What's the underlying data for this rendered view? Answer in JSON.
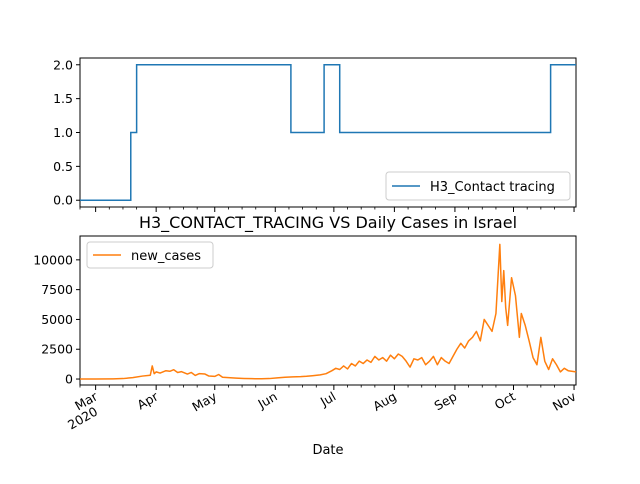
{
  "chart_data": [
    {
      "type": "line",
      "title": "",
      "xlabel": "",
      "ylabel": "",
      "x_axis": "date",
      "xlim": [
        "2020-02-22",
        "2020-11-02"
      ],
      "ylim": [
        -0.1,
        2.1
      ],
      "yticks": [
        "0.0",
        "0.5",
        "1.0",
        "1.5",
        "2.0"
      ],
      "legend": "lower-right",
      "grid": false,
      "series": [
        {
          "name": "H3_Contact tracing",
          "color": "#1f77b4",
          "steps": [
            {
              "from": "2020-02-22",
              "to": "2020-03-19",
              "value": 0
            },
            {
              "from": "2020-03-19",
              "to": "2020-03-22",
              "value": 1
            },
            {
              "from": "2020-03-22",
              "to": "2020-06-09",
              "value": 2
            },
            {
              "from": "2020-06-09",
              "to": "2020-06-26",
              "value": 1
            },
            {
              "from": "2020-06-26",
              "to": "2020-07-04",
              "value": 2
            },
            {
              "from": "2020-07-04",
              "to": "2020-10-20",
              "value": 1
            },
            {
              "from": "2020-10-20",
              "to": "2020-11-02",
              "value": 2
            }
          ]
        }
      ]
    },
    {
      "type": "line",
      "title": "H3_CONTACT_TRACING VS Daily Cases in Israel",
      "xlabel": "Date",
      "ylabel": "",
      "x_axis": "date",
      "xlim": [
        "2020-02-22",
        "2020-11-02"
      ],
      "ylim": [
        -500,
        12000
      ],
      "yticks": [
        "0",
        "2500",
        "5000",
        "7500",
        "10000"
      ],
      "xticks": [
        {
          "date": "2020-03-01",
          "label": "Mar",
          "sublabel": "2020"
        },
        {
          "date": "2020-04-01",
          "label": "Apr"
        },
        {
          "date": "2020-05-01",
          "label": "May"
        },
        {
          "date": "2020-06-01",
          "label": "Jun"
        },
        {
          "date": "2020-07-01",
          "label": "Jul"
        },
        {
          "date": "2020-08-01",
          "label": "Aug"
        },
        {
          "date": "2020-09-01",
          "label": "Sep"
        },
        {
          "date": "2020-10-01",
          "label": "Oct"
        },
        {
          "date": "2020-11-01",
          "label": "Nov"
        }
      ],
      "legend": "upper-left",
      "grid": false,
      "series": [
        {
          "name": "new_cases",
          "color": "#ff7f0e",
          "points": [
            [
              "2020-02-22",
              0
            ],
            [
              "2020-03-01",
              2
            ],
            [
              "2020-03-10",
              15
            ],
            [
              "2020-03-15",
              40
            ],
            [
              "2020-03-20",
              120
            ],
            [
              "2020-03-25",
              250
            ],
            [
              "2020-03-29",
              320
            ],
            [
              "2020-03-30",
              1100
            ],
            [
              "2020-03-31",
              450
            ],
            [
              "2020-04-01",
              600
            ],
            [
              "2020-04-03",
              500
            ],
            [
              "2020-04-06",
              700
            ],
            [
              "2020-04-08",
              650
            ],
            [
              "2020-04-10",
              780
            ],
            [
              "2020-04-12",
              550
            ],
            [
              "2020-04-14",
              620
            ],
            [
              "2020-04-17",
              420
            ],
            [
              "2020-04-19",
              550
            ],
            [
              "2020-04-21",
              300
            ],
            [
              "2020-04-23",
              450
            ],
            [
              "2020-04-26",
              420
            ],
            [
              "2020-04-28",
              250
            ],
            [
              "2020-05-01",
              220
            ],
            [
              "2020-05-03",
              380
            ],
            [
              "2020-05-05",
              150
            ],
            [
              "2020-05-08",
              120
            ],
            [
              "2020-05-12",
              80
            ],
            [
              "2020-05-16",
              50
            ],
            [
              "2020-05-20",
              30
            ],
            [
              "2020-05-25",
              20
            ],
            [
              "2020-05-29",
              40
            ],
            [
              "2020-06-02",
              100
            ],
            [
              "2020-06-06",
              150
            ],
            [
              "2020-06-10",
              180
            ],
            [
              "2020-06-14",
              200
            ],
            [
              "2020-06-17",
              230
            ],
            [
              "2020-06-20",
              280
            ],
            [
              "2020-06-24",
              350
            ],
            [
              "2020-06-27",
              450
            ],
            [
              "2020-06-30",
              700
            ],
            [
              "2020-07-02",
              900
            ],
            [
              "2020-07-04",
              800
            ],
            [
              "2020-07-06",
              1100
            ],
            [
              "2020-07-08",
              850
            ],
            [
              "2020-07-10",
              1300
            ],
            [
              "2020-07-12",
              1100
            ],
            [
              "2020-07-14",
              1500
            ],
            [
              "2020-07-16",
              1300
            ],
            [
              "2020-07-18",
              1600
            ],
            [
              "2020-07-20",
              1400
            ],
            [
              "2020-07-22",
              1900
            ],
            [
              "2020-07-24",
              1600
            ],
            [
              "2020-07-26",
              1800
            ],
            [
              "2020-07-28",
              1500
            ],
            [
              "2020-07-30",
              2000
            ],
            [
              "2020-08-01",
              1700
            ],
            [
              "2020-08-03",
              2100
            ],
            [
              "2020-08-05",
              1900
            ],
            [
              "2020-08-07",
              1500
            ],
            [
              "2020-08-09",
              1000
            ],
            [
              "2020-08-11",
              1700
            ],
            [
              "2020-08-13",
              1600
            ],
            [
              "2020-08-15",
              1800
            ],
            [
              "2020-08-17",
              1200
            ],
            [
              "2020-08-19",
              1500
            ],
            [
              "2020-08-21",
              1900
            ],
            [
              "2020-08-23",
              1200
            ],
            [
              "2020-08-25",
              1800
            ],
            [
              "2020-08-27",
              1500
            ],
            [
              "2020-08-29",
              1300
            ],
            [
              "2020-08-31",
              1900
            ],
            [
              "2020-09-02",
              2500
            ],
            [
              "2020-09-04",
              3000
            ],
            [
              "2020-09-06",
              2600
            ],
            [
              "2020-09-08",
              3200
            ],
            [
              "2020-09-10",
              3500
            ],
            [
              "2020-09-12",
              4000
            ],
            [
              "2020-09-14",
              3200
            ],
            [
              "2020-09-16",
              5000
            ],
            [
              "2020-09-18",
              4500
            ],
            [
              "2020-09-20",
              4000
            ],
            [
              "2020-09-22",
              5500
            ],
            [
              "2020-09-24",
              11300
            ],
            [
              "2020-09-25",
              6500
            ],
            [
              "2020-09-26",
              9100
            ],
            [
              "2020-09-27",
              6000
            ],
            [
              "2020-09-28",
              4500
            ],
            [
              "2020-09-30",
              8500
            ],
            [
              "2020-10-02",
              7000
            ],
            [
              "2020-10-04",
              3500
            ],
            [
              "2020-10-05",
              5500
            ],
            [
              "2020-10-07",
              4500
            ],
            [
              "2020-10-09",
              3200
            ],
            [
              "2020-10-11",
              1800
            ],
            [
              "2020-10-13",
              1200
            ],
            [
              "2020-10-15",
              3500
            ],
            [
              "2020-10-17",
              1500
            ],
            [
              "2020-10-19",
              800
            ],
            [
              "2020-10-21",
              1700
            ],
            [
              "2020-10-23",
              1200
            ],
            [
              "2020-10-25",
              600
            ],
            [
              "2020-10-27",
              900
            ],
            [
              "2020-10-29",
              700
            ],
            [
              "2020-11-02",
              600
            ]
          ]
        }
      ]
    }
  ]
}
